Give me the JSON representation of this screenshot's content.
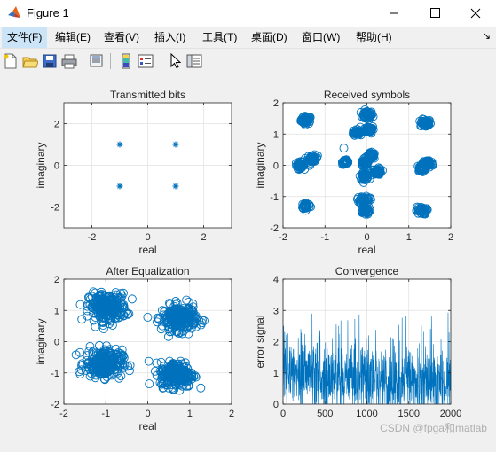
{
  "window": {
    "title": "Figure 1",
    "controls": [
      "minimize",
      "maximize",
      "close"
    ]
  },
  "menu": {
    "items": [
      "文件(F)",
      "编辑(E)",
      "查看(V)",
      "插入(I)",
      "工具(T)",
      "桌面(D)",
      "窗口(W)",
      "帮助(H)"
    ],
    "active_index": 0,
    "overflow_glyph": "↘"
  },
  "toolbar": {
    "icons": [
      "new-figure-icon",
      "open-file-icon",
      "save-icon",
      "print-icon",
      "print-preview-icon",
      "colorbar-icon",
      "legend-icon",
      "pointer-icon",
      "property-inspector-icon"
    ]
  },
  "colors": {
    "marker": "#0072bd",
    "grid": "#e0e0e0",
    "axes": "#262626"
  },
  "chart_data": [
    {
      "type": "scatter",
      "title": "Transmitted bits",
      "xlabel": "real",
      "ylabel": "imaginary",
      "xlim": [
        -3,
        3
      ],
      "ylim": [
        -3,
        3
      ],
      "xticks": [
        -2,
        0,
        2
      ],
      "yticks": [
        -2,
        0,
        2
      ],
      "grid": true,
      "marker": "asterisk",
      "points": [
        [
          -1,
          1
        ],
        [
          1,
          1
        ],
        [
          -1,
          -1
        ],
        [
          1,
          -1
        ]
      ]
    },
    {
      "type": "scatter",
      "title": "Received symbols",
      "xlabel": "real",
      "ylabel": "imaginary",
      "xlim": [
        -2,
        2
      ],
      "ylim": [
        -2,
        2
      ],
      "xticks": [
        -2,
        -1,
        0,
        1,
        2
      ],
      "yticks": [
        -2,
        -1,
        0,
        1,
        2
      ],
      "grid": true,
      "marker": "circle",
      "clusters": [
        {
          "x": -1.45,
          "y": 1.45,
          "spread": 0.06
        },
        {
          "x": 0.0,
          "y": 1.6,
          "spread": 0.07
        },
        {
          "x": 1.4,
          "y": 1.35,
          "spread": 0.06
        },
        {
          "x": 0.05,
          "y": 1.15,
          "spread": 0.06
        },
        {
          "x": -0.25,
          "y": 1.05,
          "spread": 0.04
        },
        {
          "x": -0.55,
          "y": 0.55,
          "spread": 0.0
        },
        {
          "x": -1.3,
          "y": 0.2,
          "spread": 0.06
        },
        {
          "x": -1.6,
          "y": 0.0,
          "spread": 0.05
        },
        {
          "x": -0.5,
          "y": 0.1,
          "spread": 0.04
        },
        {
          "x": -0.05,
          "y": 0.05,
          "spread": 0.05
        },
        {
          "x": 0.1,
          "y": 0.3,
          "spread": 0.05
        },
        {
          "x": 0.25,
          "y": -0.2,
          "spread": 0.05
        },
        {
          "x": -0.05,
          "y": -0.35,
          "spread": 0.05
        },
        {
          "x": 1.3,
          "y": -0.1,
          "spread": 0.05
        },
        {
          "x": 1.45,
          "y": 0.05,
          "spread": 0.06
        },
        {
          "x": -1.45,
          "y": -1.3,
          "spread": 0.05
        },
        {
          "x": -0.05,
          "y": -1.1,
          "spread": 0.06
        },
        {
          "x": -0.05,
          "y": -1.45,
          "spread": 0.06
        },
        {
          "x": 1.3,
          "y": -1.45,
          "spread": 0.06
        }
      ]
    },
    {
      "type": "scatter",
      "title": "After Equalization",
      "xlabel": "real",
      "ylabel": "imaginary",
      "xlim": [
        -2,
        2
      ],
      "ylim": [
        -2,
        2
      ],
      "xticks": [
        -2,
        -1,
        0,
        1,
        2
      ],
      "yticks": [
        -2,
        -1,
        0,
        1,
        2
      ],
      "grid": true,
      "marker": "circle",
      "clusters": [
        {
          "x": -0.95,
          "y": 1.1,
          "spread": 0.22
        },
        {
          "x": 0.75,
          "y": 0.75,
          "spread": 0.2
        },
        {
          "x": -1.05,
          "y": -0.7,
          "spread": 0.22
        },
        {
          "x": 0.7,
          "y": -1.05,
          "spread": 0.2
        }
      ]
    },
    {
      "type": "line",
      "title": "Convergence",
      "xlabel": "",
      "ylabel": "error signal",
      "xlim": [
        0,
        2000
      ],
      "ylim": [
        0,
        4
      ],
      "xticks": [
        0,
        500,
        1000,
        1500,
        2000
      ],
      "yticks": [
        0,
        1,
        2,
        3,
        4
      ],
      "grid": true,
      "series": [
        {
          "length": 2000,
          "mean_start": 1.0,
          "mean_end": 0.6,
          "peak": 3.0,
          "min": 0.0
        }
      ]
    }
  ],
  "watermark": "CSDN @fpga和matlab"
}
